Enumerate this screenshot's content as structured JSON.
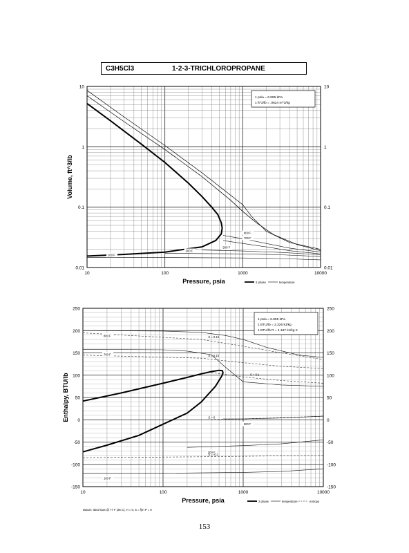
{
  "header": {
    "formula": "C3H5Cl3",
    "compound": "1-2-3-TRICHLOROPROPANE"
  },
  "page_number": "153",
  "chart_data": [
    {
      "type": "line",
      "scale": "log-log",
      "ylabel": "Volume, ft^3/lb",
      "xlabel": "Pressure, psia",
      "xlim": [
        10,
        10000
      ],
      "ylim": [
        0.01,
        10
      ],
      "x_ticks": [
        "10",
        "100",
        "1000",
        "10000"
      ],
      "y_ticks": [
        "0.01",
        "0.1",
        "1",
        "10"
      ],
      "y_ticks_right": [
        "0.01",
        "0.1",
        "1",
        "10"
      ],
      "grid": true,
      "info_box": [
        "1 psia = 6.895 kPa",
        "1 ft^3/lb = .0624 m^3/kg"
      ],
      "legend": [
        {
          "label": "2 phase",
          "style": "thick"
        },
        {
          "label": "temperature",
          "style": "thin"
        }
      ],
      "series": [
        {
          "name": "2 phase",
          "style": "thick",
          "x": [
            10,
            20,
            50,
            100,
            200,
            300,
            400,
            480,
            530,
            545,
            530,
            450,
            300,
            100,
            30,
            10
          ],
          "y": [
            5.2,
            2.7,
            1.1,
            0.55,
            0.25,
            0.15,
            0.1,
            0.075,
            0.055,
            0.045,
            0.036,
            0.028,
            0.022,
            0.018,
            0.0165,
            0.0155
          ]
        },
        {
          "style": "thin",
          "x": [
            10,
            30,
            100,
            300,
            700,
            1000,
            1500,
            2500,
            5000,
            10000
          ],
          "y": [
            7.0,
            2.6,
            0.9,
            0.32,
            0.13,
            0.085,
            0.055,
            0.035,
            0.024,
            0.019
          ]
        },
        {
          "style": "thin",
          "x": [
            10,
            30,
            100,
            300,
            1000,
            1300,
            2000,
            4000,
            10000
          ],
          "y": [
            8.6,
            3.1,
            1.05,
            0.37,
            0.11,
            0.07,
            0.04,
            0.026,
            0.02
          ]
        }
      ],
      "isotherms": [
        {
          "label": "800 F",
          "x": [
            560,
            1000,
            2000,
            4000,
            10000
          ],
          "y": [
            0.034,
            0.03,
            0.025,
            0.021,
            0.018
          ]
        },
        {
          "label": "700 F",
          "x": [
            560,
            1000,
            2000,
            4000,
            10000
          ],
          "y": [
            0.028,
            0.025,
            0.022,
            0.019,
            0.0168
          ]
        },
        {
          "label": "500 F",
          "x": [
            300,
            1000,
            3000,
            10000
          ],
          "y": [
            0.0195,
            0.0188,
            0.0178,
            0.0163
          ]
        },
        {
          "label": "300 F",
          "x": [
            100,
            1000,
            3000,
            10000
          ],
          "y": [
            0.0172,
            0.0168,
            0.0163,
            0.0152
          ]
        },
        {
          "label": "100 F",
          "x": [
            10,
            100,
            1000,
            3000,
            10000
          ],
          "y": [
            0.0146,
            0.0146,
            0.0144,
            0.0141,
            0.0134
          ]
        }
      ]
    },
    {
      "type": "line",
      "scale": "log-x",
      "ylabel": "Enthalpy, BTU/lb",
      "xlabel": "Pressure, psia",
      "xlim": [
        10,
        10000
      ],
      "ylim": [
        -150,
        250
      ],
      "x_ticks": [
        "10",
        "100",
        "1000",
        "10000"
      ],
      "y_ticks": [
        "-150",
        "-100",
        "-50",
        "0",
        "50",
        "100",
        "150",
        "200",
        "250"
      ],
      "y_ticks_right": [
        "-150",
        "-100",
        "-50",
        "0",
        "50",
        "100",
        "150",
        "200",
        "250"
      ],
      "grid": true,
      "info_box": [
        "1 psia = 6.895 kPa",
        "1 BTU/lb = 2.326 kJ/kg",
        "1 BTU/lb R = 4.187 kJ/kg K"
      ],
      "legend": [
        {
          "label": "2 phase",
          "style": "thick"
        },
        {
          "label": "temperature",
          "style": "thin"
        },
        {
          "label": "entropy",
          "style": "dashed"
        }
      ],
      "footnote": "Datum: Ideal Gas @ 77 F (25 C), H = 0, S = f(In P = 0",
      "series": [
        {
          "name": "2 phase",
          "style": "thick",
          "x": [
            10,
            30,
            100,
            200,
            300,
            400,
            500,
            550,
            560,
            540,
            450,
            300,
            200,
            100,
            50,
            20,
            10
          ],
          "y": [
            42,
            60,
            82,
            95,
            103,
            108,
            111,
            110,
            105,
            98,
            75,
            40,
            15,
            -10,
            -35,
            -57,
            -72
          ]
        }
      ],
      "isotherms": [
        {
          "label": "800 F",
          "x": [
            10,
            100,
            300,
            600,
            1000,
            2000,
            5000,
            10000
          ],
          "y": [
            200,
            199,
            196,
            189,
            180,
            162,
            145,
            140
          ]
        },
        {
          "label": "700 F",
          "x": [
            10,
            100,
            200,
            400,
            600,
            1000,
            3000,
            10000
          ],
          "y": [
            158,
            157,
            154,
            146,
            118,
            85,
            78,
            75
          ]
        },
        {
          "label": "500 F",
          "x": [
            560,
            1000,
            3000,
            10000
          ],
          "y": [
            2,
            2,
            4,
            8
          ]
        },
        {
          "label": "300 F",
          "x": [
            200,
            1000,
            3000,
            10000
          ],
          "y": [
            -62,
            -58,
            -54,
            -45
          ]
        },
        {
          "label": "100 F",
          "x": [
            10,
            100,
            1000,
            3000,
            10000
          ],
          "y": [
            -120,
            -120,
            -118,
            -116,
            -110
          ]
        }
      ],
      "entropy_lines": [
        {
          "label": "S = 0.15",
          "x": [
            10,
            300,
            1000,
            3000,
            10000
          ],
          "y": [
            195,
            180,
            165,
            150,
            135
          ]
        },
        {
          "label": "S = 0.10",
          "x": [
            10,
            300,
            1000,
            3000,
            10000
          ],
          "y": [
            145,
            138,
            128,
            120,
            115
          ]
        },
        {
          "label": "S = 0.1",
          "x": [
            400,
            1000,
            3000,
            10000
          ],
          "y": [
            106,
            96,
            88,
            82
          ]
        },
        {
          "label": "S = 0",
          "x": [
            10,
            300,
            1000,
            10000
          ],
          "y": [
            0,
            0,
            2,
            8
          ]
        },
        {
          "label": "S = -0.1",
          "x": [
            10,
            300,
            1000,
            10000
          ],
          "y": [
            -85,
            -83,
            -82,
            -80
          ]
        }
      ]
    }
  ]
}
